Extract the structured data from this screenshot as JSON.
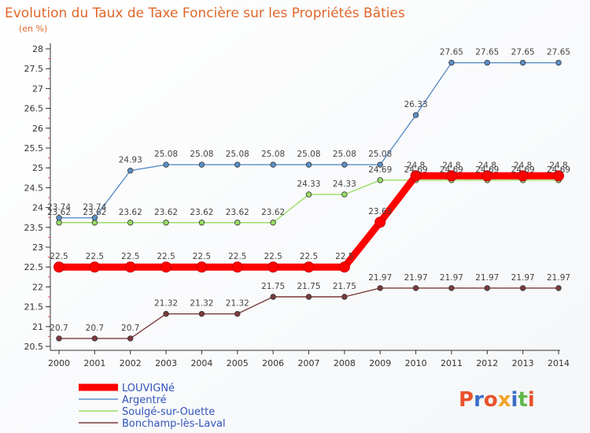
{
  "chart_data": {
    "type": "line",
    "title": "Evolution du Taux de Taxe Foncière sur les Propriétés Bâties",
    "ylabel": "(en %)",
    "xlabel": "",
    "ylim": [
      20.5,
      28
    ],
    "yticks": [
      "20.5",
      "21",
      "21.5",
      "22",
      "22.5",
      "23",
      "23.5",
      "24",
      "24.5",
      "25",
      "25.5",
      "26",
      "26.5",
      "27",
      "27.5",
      "28"
    ],
    "categories": [
      "2000",
      "2001",
      "2002",
      "2003",
      "2004",
      "2005",
      "2006",
      "2007",
      "2008",
      "2009",
      "2010",
      "2011",
      "2012",
      "2013",
      "2014"
    ],
    "series": [
      {
        "name": "LOUVIGNé",
        "color": "#ff0000",
        "values": [
          22.5,
          22.5,
          22.5,
          22.5,
          22.5,
          22.5,
          22.5,
          22.5,
          22.5,
          23.63,
          24.8,
          24.8,
          24.8,
          24.8,
          24.8
        ],
        "labels": [
          "22.5",
          "22.5",
          "22.5",
          "22.5",
          "22.5",
          "22.5",
          "22.5",
          "22.5",
          "22.5",
          "23.63",
          "24.8",
          "24.8",
          "24.8",
          "24.8",
          "24.8"
        ]
      },
      {
        "name": "Argentré",
        "color": "#5b8fc7",
        "values": [
          23.74,
          23.74,
          24.93,
          25.08,
          25.08,
          25.08,
          25.08,
          25.08,
          25.08,
          25.08,
          26.33,
          27.65,
          27.65,
          27.65,
          27.65
        ],
        "labels": [
          "23.74",
          "23.74",
          "24.93",
          "25.08",
          "25.08",
          "25.08",
          "25.08",
          "25.08",
          "25.08",
          "25.08",
          "26.33",
          "27.65",
          "27.65",
          "27.65",
          "27.65"
        ]
      },
      {
        "name": "Soulgé-sur-Ouette",
        "color": "#99dd66",
        "values": [
          23.62,
          23.62,
          23.62,
          23.62,
          23.62,
          23.62,
          23.62,
          24.33,
          24.33,
          24.69,
          24.69,
          24.69,
          24.69,
          24.69,
          24.69
        ],
        "labels": [
          "23.62",
          "23.62",
          "23.62",
          "23.62",
          "23.62",
          "23.62",
          "23.62",
          "24.33",
          "24.33",
          "24.69",
          "24.69",
          "24.69",
          "24.69",
          "24.69",
          "24.69"
        ]
      },
      {
        "name": "Bonchamp-lès-Laval",
        "color": "#7a3b3b",
        "values": [
          20.7,
          20.7,
          20.7,
          21.32,
          21.32,
          21.32,
          21.75,
          21.75,
          21.75,
          21.97,
          21.97,
          21.97,
          21.97,
          21.97,
          21.97
        ],
        "labels": [
          "20.7",
          "20.7",
          "20.7",
          "21.32",
          "21.32",
          "21.32",
          "21.75",
          "21.75",
          "21.75",
          "21.97",
          "21.97",
          "21.97",
          "21.97",
          "21.97",
          "21.97"
        ]
      }
    ],
    "legend_position": "bottom-left",
    "grid": false
  },
  "watermark": "Proxiti"
}
